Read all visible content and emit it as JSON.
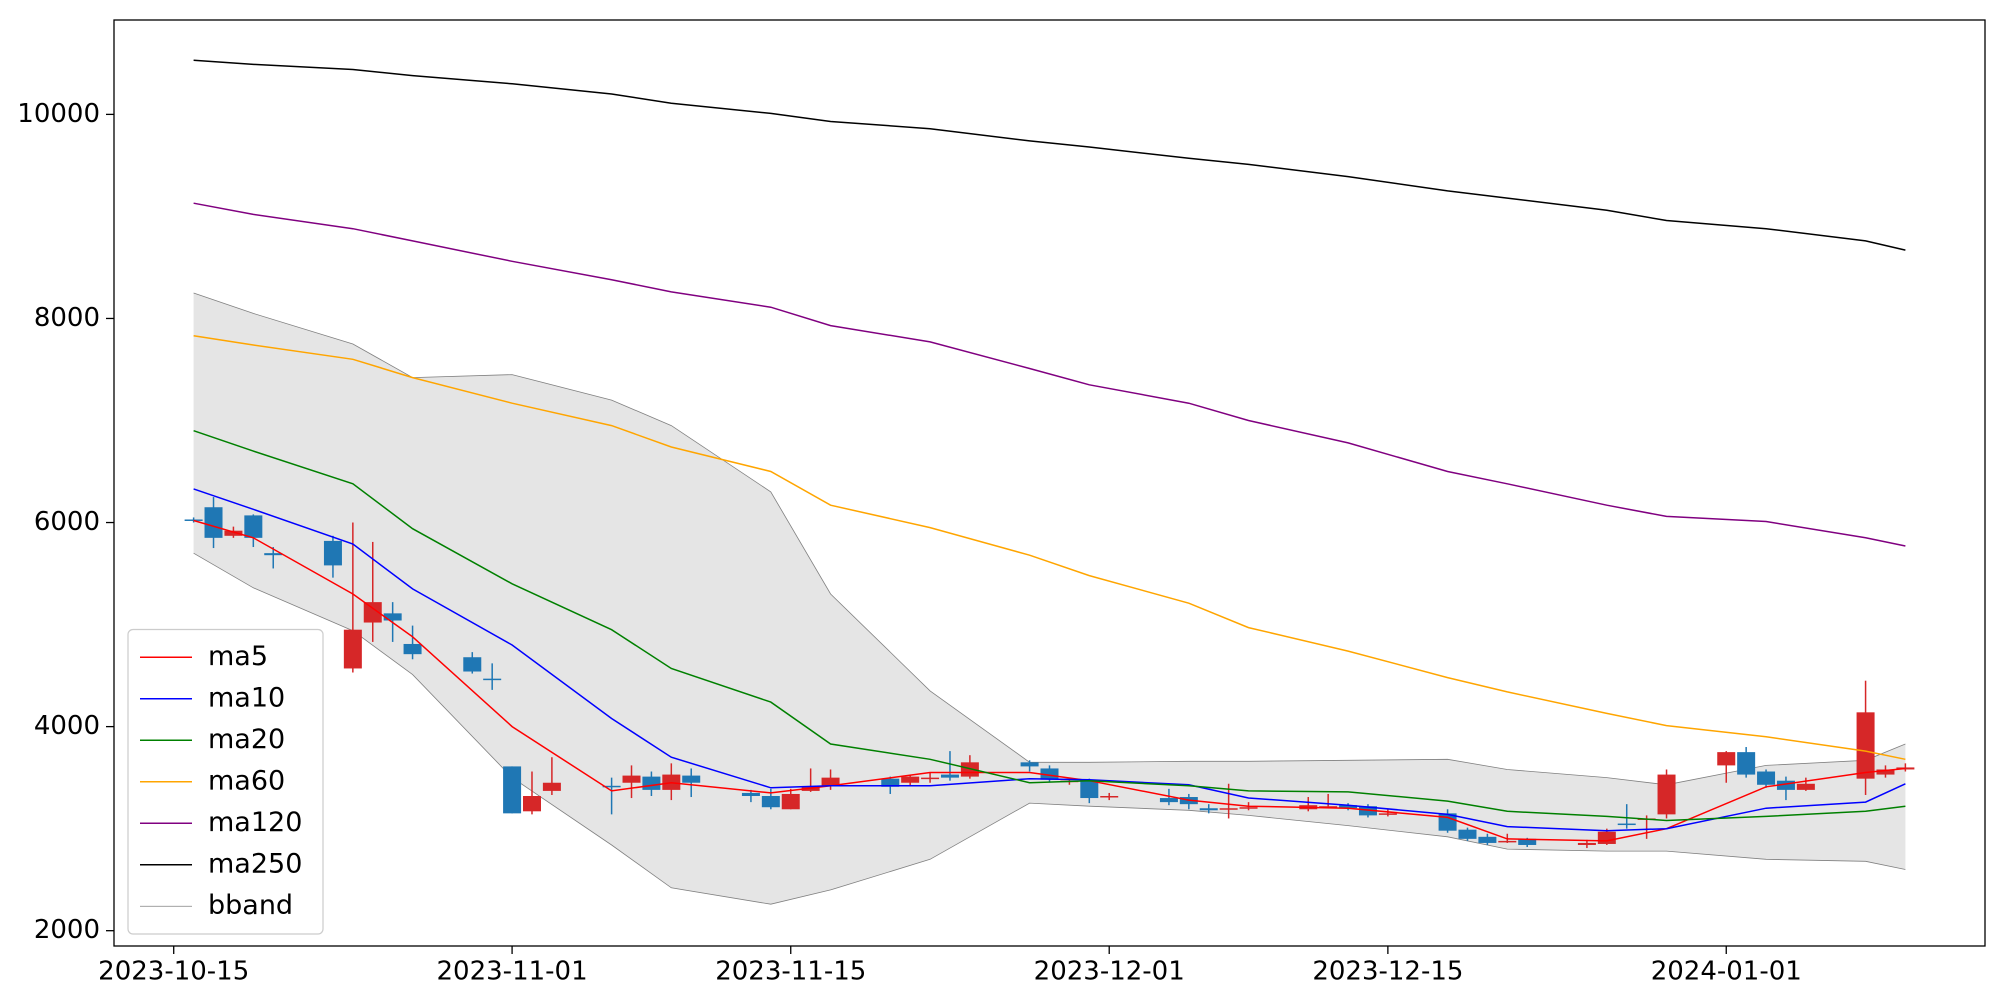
{
  "chart_data": {
    "type": "candlestick",
    "x": [
      "2023-10-16",
      "2023-10-17",
      "2023-10-18",
      "2023-10-19",
      "2023-10-20",
      "2023-10-23",
      "2023-10-24",
      "2023-10-25",
      "2023-10-26",
      "2023-10-27",
      "2023-10-30",
      "2023-10-31",
      "2023-11-01",
      "2023-11-02",
      "2023-11-03",
      "2023-11-06",
      "2023-11-07",
      "2023-11-08",
      "2023-11-09",
      "2023-11-10",
      "2023-11-13",
      "2023-11-14",
      "2023-11-15",
      "2023-11-16",
      "2023-11-17",
      "2023-11-20",
      "2023-11-21",
      "2023-11-22",
      "2023-11-23",
      "2023-11-24",
      "2023-11-27",
      "2023-11-28",
      "2023-11-29",
      "2023-11-30",
      "2023-12-01",
      "2023-12-04",
      "2023-12-05",
      "2023-12-06",
      "2023-12-07",
      "2023-12-08",
      "2023-12-11",
      "2023-12-12",
      "2023-12-13",
      "2023-12-14",
      "2023-12-15",
      "2023-12-18",
      "2023-12-19",
      "2023-12-20",
      "2023-12-21",
      "2023-12-22",
      "2023-12-25",
      "2023-12-26",
      "2023-12-27",
      "2023-12-28",
      "2023-12-29",
      "2024-01-01",
      "2024-01-02",
      "2024-01-03",
      "2024-01-04",
      "2024-01-05",
      "2024-01-08",
      "2024-01-09",
      "2024-01-10"
    ],
    "open": [
      6030,
      6150,
      5870,
      6070,
      5700,
      5820,
      4570,
      5020,
      5110,
      4810,
      4680,
      4470,
      3610,
      3170,
      3370,
      3420,
      3450,
      3510,
      3380,
      3520,
      3350,
      3320,
      3190,
      3370,
      3420,
      3490,
      3450,
      3500,
      3530,
      3510,
      3650,
      3590,
      3470,
      3480,
      3320,
      3300,
      3310,
      3200,
      3190,
      3210,
      3190,
      3220,
      3230,
      3220,
      3150,
      3150,
      2990,
      2920,
      2880,
      2900,
      2840,
      2850,
      3050,
      3100,
      3140,
      3620,
      3750,
      3560,
      3470,
      3380,
      3490,
      3530,
      3580
    ],
    "high": [
      6050,
      6250,
      5960,
      6080,
      5760,
      5870,
      6000,
      5810,
      5220,
      4990,
      4730,
      4620,
      3610,
      3560,
      3700,
      3500,
      3620,
      3560,
      3640,
      3590,
      3380,
      3390,
      3390,
      3590,
      3580,
      3510,
      3530,
      3550,
      3760,
      3720,
      3670,
      3620,
      3490,
      3490,
      3350,
      3390,
      3340,
      3240,
      3440,
      3260,
      3310,
      3340,
      3250,
      3240,
      3190,
      3190,
      3010,
      2950,
      2950,
      2910,
      2890,
      3000,
      3240,
      3130,
      3580,
      3760,
      3800,
      3580,
      3510,
      3500,
      4450,
      3620,
      3640
    ],
    "low": [
      6000,
      5750,
      5850,
      5760,
      5550,
      5460,
      4530,
      4830,
      4830,
      4660,
      4520,
      4360,
      3150,
      3140,
      3330,
      3140,
      3300,
      3320,
      3280,
      3310,
      3260,
      3190,
      3190,
      3360,
      3380,
      3340,
      3420,
      3450,
      3470,
      3490,
      3560,
      3460,
      3430,
      3250,
      3280,
      3230,
      3190,
      3150,
      3100,
      3180,
      3170,
      3200,
      3180,
      3110,
      3120,
      2960,
      2880,
      2840,
      2860,
      2820,
      2810,
      2840,
      3000,
      2900,
      3100,
      3450,
      3500,
      3400,
      3280,
      3370,
      3330,
      3500,
      3560
    ],
    "close": [
      6020,
      5850,
      5920,
      5850,
      5680,
      5580,
      4950,
      5220,
      5040,
      4710,
      4540,
      4460,
      3150,
      3320,
      3450,
      3410,
      3520,
      3380,
      3530,
      3450,
      3320,
      3210,
      3340,
      3410,
      3500,
      3410,
      3510,
      3500,
      3500,
      3650,
      3610,
      3480,
      3470,
      3300,
      3320,
      3260,
      3240,
      3180,
      3200,
      3210,
      3230,
      3220,
      3200,
      3130,
      3150,
      2980,
      2900,
      2860,
      2880,
      2840,
      2860,
      2970,
      3040,
      3100,
      3530,
      3750,
      3530,
      3430,
      3380,
      3440,
      4140,
      3580,
      3600
    ],
    "up_color": "#d62728",
    "down_color": "#1f77b4",
    "series": [
      {
        "name": "ma5",
        "color": "#ff0000",
        "x": [
          "2023-10-16",
          "2023-10-19",
          "2023-10-24",
          "2023-10-27",
          "2023-11-01",
          "2023-11-06",
          "2023-11-09",
          "2023-11-14",
          "2023-11-17",
          "2023-11-22",
          "2023-11-27",
          "2023-11-30",
          "2023-12-05",
          "2023-12-08",
          "2023-12-13",
          "2023-12-18",
          "2023-12-21",
          "2023-12-26",
          "2023-12-29",
          "2024-01-03",
          "2024-01-08",
          "2024-01-10"
        ],
        "values": [
          6020,
          5850,
          5300,
          4880,
          4000,
          3370,
          3450,
          3350,
          3420,
          3550,
          3550,
          3470,
          3280,
          3220,
          3200,
          3110,
          2900,
          2880,
          3000,
          3410,
          3550,
          3590
        ]
      },
      {
        "name": "ma10",
        "color": "#0000ff",
        "x": [
          "2023-10-16",
          "2023-10-19",
          "2023-10-24",
          "2023-10-27",
          "2023-11-01",
          "2023-11-06",
          "2023-11-09",
          "2023-11-14",
          "2023-11-17",
          "2023-11-22",
          "2023-11-27",
          "2023-11-30",
          "2023-12-05",
          "2023-12-08",
          "2023-12-13",
          "2023-12-18",
          "2023-12-21",
          "2023-12-26",
          "2023-12-29",
          "2024-01-03",
          "2024-01-08",
          "2024-01-10"
        ],
        "values": [
          6330,
          6130,
          5790,
          5350,
          4800,
          4080,
          3700,
          3400,
          3420,
          3420,
          3490,
          3480,
          3430,
          3300,
          3230,
          3140,
          3020,
          2980,
          3000,
          3200,
          3260,
          3440
        ]
      },
      {
        "name": "ma20",
        "color": "#008000",
        "x": [
          "2023-10-16",
          "2023-10-19",
          "2023-10-24",
          "2023-10-27",
          "2023-11-01",
          "2023-11-06",
          "2023-11-09",
          "2023-11-14",
          "2023-11-17",
          "2023-11-22",
          "2023-11-27",
          "2023-11-30",
          "2023-12-05",
          "2023-12-08",
          "2023-12-13",
          "2023-12-18",
          "2023-12-21",
          "2023-12-26",
          "2023-12-29",
          "2024-01-03",
          "2024-01-08",
          "2024-01-10"
        ],
        "values": [
          6900,
          6700,
          6380,
          5940,
          5400,
          4950,
          4570,
          4240,
          3830,
          3680,
          3450,
          3470,
          3420,
          3370,
          3360,
          3270,
          3170,
          3120,
          3080,
          3120,
          3170,
          3220
        ]
      },
      {
        "name": "ma60",
        "color": "#ffa500",
        "x": [
          "2023-10-16",
          "2023-10-19",
          "2023-10-24",
          "2023-10-27",
          "2023-11-01",
          "2023-11-06",
          "2023-11-09",
          "2023-11-14",
          "2023-11-17",
          "2023-11-22",
          "2023-11-27",
          "2023-11-30",
          "2023-12-05",
          "2023-12-08",
          "2023-12-13",
          "2023-12-18",
          "2023-12-21",
          "2023-12-26",
          "2023-12-29",
          "2024-01-03",
          "2024-01-08",
          "2024-01-10"
        ],
        "values": [
          7830,
          7740,
          7600,
          7420,
          7170,
          6950,
          6740,
          6500,
          6170,
          5950,
          5680,
          5480,
          5210,
          4970,
          4740,
          4480,
          4340,
          4130,
          4010,
          3900,
          3760,
          3680
        ]
      },
      {
        "name": "ma120",
        "color": "#800080",
        "x": [
          "2023-10-16",
          "2023-10-19",
          "2023-10-24",
          "2023-10-27",
          "2023-11-01",
          "2023-11-06",
          "2023-11-09",
          "2023-11-14",
          "2023-11-17",
          "2023-11-22",
          "2023-11-27",
          "2023-11-30",
          "2023-12-05",
          "2023-12-08",
          "2023-12-13",
          "2023-12-18",
          "2023-12-21",
          "2023-12-26",
          "2023-12-29",
          "2024-01-03",
          "2024-01-08",
          "2024-01-10"
        ],
        "values": [
          9130,
          9020,
          8880,
          8760,
          8560,
          8380,
          8260,
          8110,
          7930,
          7770,
          7510,
          7350,
          7170,
          7000,
          6780,
          6500,
          6380,
          6170,
          6060,
          6010,
          5850,
          5770
        ]
      },
      {
        "name": "ma250",
        "color": "#000000",
        "x": [
          "2023-10-16",
          "2023-10-19",
          "2023-10-24",
          "2023-10-27",
          "2023-11-01",
          "2023-11-06",
          "2023-11-09",
          "2023-11-14",
          "2023-11-17",
          "2023-11-22",
          "2023-11-27",
          "2023-11-30",
          "2023-12-05",
          "2023-12-08",
          "2023-12-13",
          "2023-12-18",
          "2023-12-21",
          "2023-12-26",
          "2023-12-29",
          "2024-01-03",
          "2024-01-08",
          "2024-01-10"
        ],
        "values": [
          10530,
          10490,
          10440,
          10380,
          10300,
          10200,
          10110,
          10010,
          9930,
          9860,
          9740,
          9680,
          9570,
          9510,
          9390,
          9250,
          9180,
          9060,
          8960,
          8880,
          8760,
          8670
        ]
      },
      {
        "name": "bband",
        "color": "#808080",
        "fill": "#e5e5e5",
        "x": [
          "2023-10-16",
          "2023-10-19",
          "2023-10-24",
          "2023-10-27",
          "2023-11-01",
          "2023-11-06",
          "2023-11-09",
          "2023-11-14",
          "2023-11-17",
          "2023-11-22",
          "2023-11-27",
          "2023-11-30",
          "2023-12-05",
          "2023-12-08",
          "2023-12-13",
          "2023-12-18",
          "2023-12-21",
          "2023-12-26",
          "2023-12-29",
          "2024-01-03",
          "2024-01-08",
          "2024-01-10"
        ],
        "upper": [
          8250,
          8050,
          7750,
          7420,
          7450,
          7200,
          6950,
          6300,
          5300,
          4350,
          3650,
          3650,
          3660,
          3660,
          3670,
          3680,
          3580,
          3500,
          3430,
          3620,
          3670,
          3830
        ],
        "lower": [
          5700,
          5360,
          4940,
          4510,
          3500,
          2840,
          2420,
          2260,
          2400,
          2700,
          3250,
          3220,
          3180,
          3130,
          3030,
          2920,
          2800,
          2780,
          2780,
          2700,
          2680,
          2600
        ]
      }
    ],
    "xlim": [
      "2023-10-12",
      "2024-01-14"
    ],
    "xticks": [
      "2023-10-15",
      "2023-11-01",
      "2023-11-15",
      "2023-12-01",
      "2023-12-15",
      "2024-01-01"
    ],
    "ylim": [
      1850,
      10925
    ],
    "yticks": [
      2000,
      4000,
      6000,
      8000,
      10000
    ],
    "legend": "lower left"
  }
}
